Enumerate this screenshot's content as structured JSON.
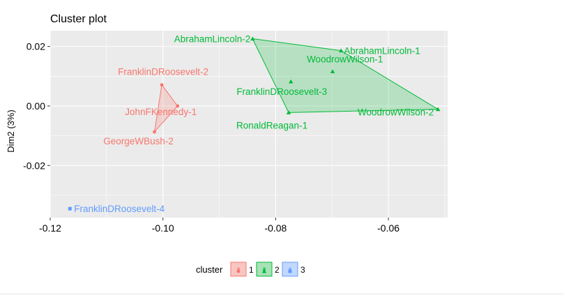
{
  "chart_data": {
    "type": "scatter",
    "title": "Cluster plot",
    "xlabel": "",
    "ylabel": "Dim2 (3%)",
    "xlim": [
      -0.12,
      -0.0495
    ],
    "ylim": [
      -0.0375,
      0.0253
    ],
    "x_ticks": [
      -0.12,
      -0.1,
      -0.08,
      -0.06
    ],
    "x_tick_labels": [
      "-0.12",
      "-0.10",
      "-0.08",
      "-0.06"
    ],
    "y_ticks": [
      0.02,
      0.0,
      -0.02
    ],
    "y_tick_labels": [
      "0.02",
      "0.00",
      "-0.02"
    ],
    "grid": true,
    "legend": {
      "title": "cluster",
      "position": "bottom",
      "entries": [
        {
          "label": "1",
          "color": "#F8766D",
          "fill": "#F8C6C2",
          "shape": "circle",
          "glyph": "a"
        },
        {
          "label": "2",
          "color": "#00BA38",
          "fill": "#A8E2B6",
          "shape": "triangle",
          "glyph": "a"
        },
        {
          "label": "3",
          "color": "#619CFF",
          "fill": "#C2D8FF",
          "shape": "square",
          "glyph": "a"
        }
      ]
    },
    "series": [
      {
        "cluster": "1",
        "color": "#F8766D",
        "fill": "#F8766D",
        "shape": "circle",
        "points": [
          {
            "label": "FranklinDRoosevelt-2",
            "x": -0.1002,
            "y": 0.0071
          },
          {
            "label": "JohnFKennedy-1",
            "x": -0.0974,
            "y": 0.0
          },
          {
            "label": "GeorgeWBush-2",
            "x": -0.1015,
            "y": -0.0087
          }
        ]
      },
      {
        "cluster": "2",
        "color": "#00BA38",
        "fill": "#00BA38",
        "shape": "triangle",
        "points": [
          {
            "label": "AbrahamLincoln-2",
            "x": -0.0841,
            "y": 0.0226
          },
          {
            "label": "AbrahamLincoln-1",
            "x": -0.0684,
            "y": 0.0186
          },
          {
            "label": "WoodrowWilson-1",
            "x": -0.0699,
            "y": 0.0116
          },
          {
            "label": "FranklinDRoosevelt-3",
            "x": -0.0773,
            "y": 0.0082
          },
          {
            "label": "WoodrowWilson-2",
            "x": -0.0512,
            "y": -0.0011
          },
          {
            "label": "RonaldReagan-1",
            "x": -0.0777,
            "y": -0.0022
          }
        ]
      },
      {
        "cluster": "3",
        "color": "#619CFF",
        "fill": "#619CFF",
        "shape": "square",
        "points": [
          {
            "label": "FranklinDRoosevelt-4",
            "x": -0.1165,
            "y": -0.0345
          }
        ]
      }
    ]
  }
}
